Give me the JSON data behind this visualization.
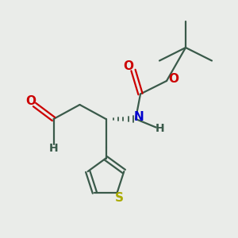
{
  "background_color": "#eaece9",
  "bond_color": "#3a5a4a",
  "O_color": "#cc0000",
  "N_color": "#0000cc",
  "S_color": "#aaaa00",
  "figsize": [
    3.0,
    3.0
  ],
  "dpi": 100,
  "xlim": [
    0,
    10
  ],
  "ylim": [
    0,
    10
  ],
  "lw": 1.6,
  "fs": 10
}
